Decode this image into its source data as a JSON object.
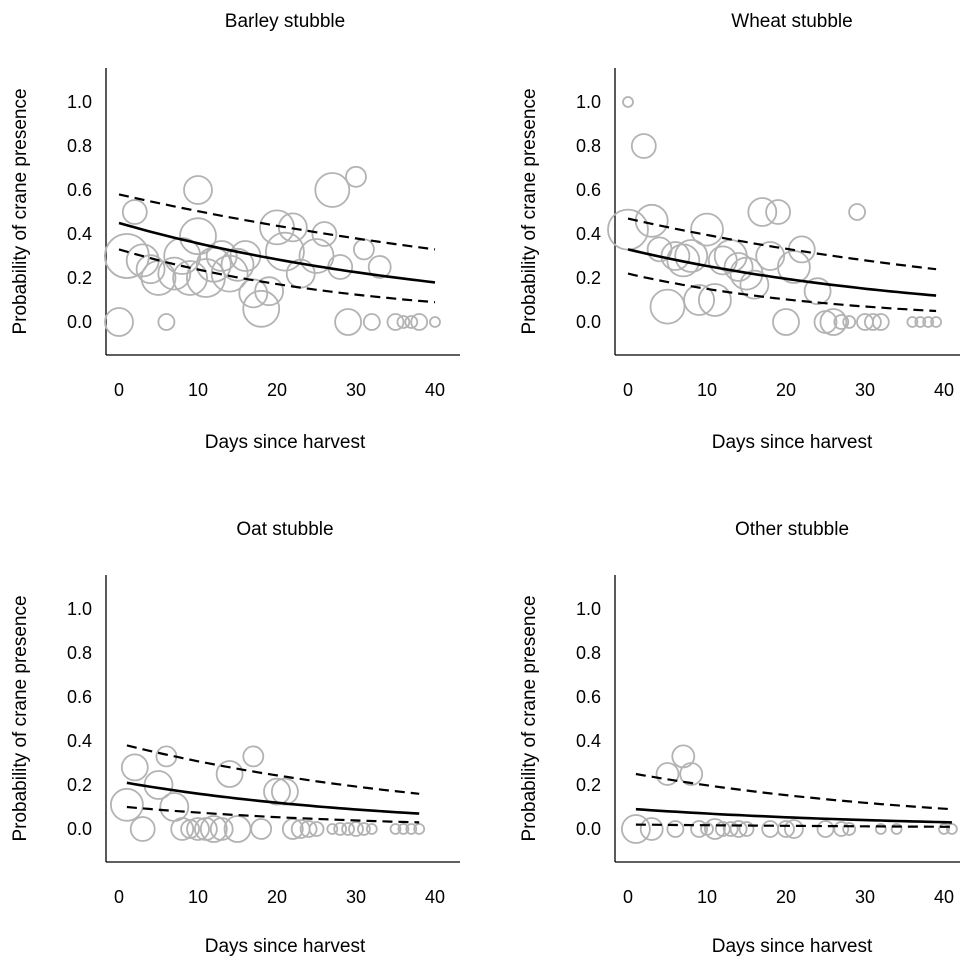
{
  "chart_data": [
    {
      "type": "scatter",
      "title": "Barley stubble",
      "xlabel": "Days since harvest",
      "ylabel": "Probability of crane presence",
      "xlim": [
        -2,
        42
      ],
      "ylim": [
        -0.15,
        1.15
      ],
      "xticks": [
        "0",
        "10",
        "20",
        "30",
        "40"
      ],
      "yticks": [
        "0.0",
        "0.2",
        "0.4",
        "0.6",
        "0.8",
        "1.0"
      ],
      "colors": {
        "points": "#b3b3b3",
        "fit": "#000000",
        "ci": "#000000"
      },
      "points": [
        {
          "x": 0,
          "y": 0.0,
          "r": 14
        },
        {
          "x": 1,
          "y": 0.3,
          "r": 22
        },
        {
          "x": 2,
          "y": 0.5,
          "r": 12
        },
        {
          "x": 3,
          "y": 0.28,
          "r": 16
        },
        {
          "x": 4,
          "y": 0.24,
          "r": 14
        },
        {
          "x": 5,
          "y": 0.2,
          "r": 17
        },
        {
          "x": 6,
          "y": 0.0,
          "r": 8
        },
        {
          "x": 7,
          "y": 0.22,
          "r": 16
        },
        {
          "x": 8,
          "y": 0.3,
          "r": 18
        },
        {
          "x": 9,
          "y": 0.2,
          "r": 17
        },
        {
          "x": 10,
          "y": 0.39,
          "r": 18
        },
        {
          "x": 10,
          "y": 0.6,
          "r": 14
        },
        {
          "x": 11,
          "y": 0.2,
          "r": 19
        },
        {
          "x": 12,
          "y": 0.26,
          "r": 17
        },
        {
          "x": 13,
          "y": 0.3,
          "r": 15
        },
        {
          "x": 14,
          "y": 0.22,
          "r": 18
        },
        {
          "x": 15,
          "y": 0.26,
          "r": 16
        },
        {
          "x": 16,
          "y": 0.3,
          "r": 15
        },
        {
          "x": 17,
          "y": 0.13,
          "r": 14
        },
        {
          "x": 18,
          "y": 0.06,
          "r": 18
        },
        {
          "x": 19,
          "y": 0.14,
          "r": 14
        },
        {
          "x": 20,
          "y": 0.43,
          "r": 17
        },
        {
          "x": 21,
          "y": 0.32,
          "r": 19
        },
        {
          "x": 22,
          "y": 0.43,
          "r": 14
        },
        {
          "x": 23,
          "y": 0.22,
          "r": 14
        },
        {
          "x": 25,
          "y": 0.3,
          "r": 17
        },
        {
          "x": 26,
          "y": 0.4,
          "r": 12
        },
        {
          "x": 27,
          "y": 0.6,
          "r": 17
        },
        {
          "x": 28,
          "y": 0.25,
          "r": 12
        },
        {
          "x": 29,
          "y": 0.0,
          "r": 13
        },
        {
          "x": 30,
          "y": 0.66,
          "r": 10
        },
        {
          "x": 31,
          "y": 0.33,
          "r": 10
        },
        {
          "x": 32,
          "y": 0.0,
          "r": 8
        },
        {
          "x": 33,
          "y": 0.25,
          "r": 11
        },
        {
          "x": 35,
          "y": 0.0,
          "r": 8
        },
        {
          "x": 36,
          "y": 0.0,
          "r": 6
        },
        {
          "x": 37,
          "y": 0.0,
          "r": 6
        },
        {
          "x": 38,
          "y": 0.0,
          "r": 8
        },
        {
          "x": 40,
          "y": 0.0,
          "r": 5
        }
      ],
      "fit": {
        "x0": 0,
        "x1": 40,
        "y0": 0.45,
        "y1": 0.18
      },
      "ci_upper": {
        "x0": 0,
        "x1": 40,
        "y0": 0.58,
        "y1": 0.33
      },
      "ci_lower": {
        "x0": 0,
        "x1": 40,
        "y0": 0.33,
        "y1": 0.09
      }
    },
    {
      "type": "scatter",
      "title": "Wheat stubble",
      "xlabel": "Days since harvest",
      "ylabel": "Probability of crane presence",
      "xlim": [
        -2,
        42
      ],
      "ylim": [
        -0.15,
        1.15
      ],
      "xticks": [
        "0",
        "10",
        "20",
        "30",
        "40"
      ],
      "yticks": [
        "0.0",
        "0.2",
        "0.4",
        "0.6",
        "0.8",
        "1.0"
      ],
      "colors": {
        "points": "#b3b3b3",
        "fit": "#000000",
        "ci": "#000000"
      },
      "points": [
        {
          "x": 0,
          "y": 1.0,
          "r": 5
        },
        {
          "x": 0,
          "y": 0.42,
          "r": 20
        },
        {
          "x": 2,
          "y": 0.8,
          "r": 12
        },
        {
          "x": 3,
          "y": 0.46,
          "r": 16
        },
        {
          "x": 4,
          "y": 0.33,
          "r": 12
        },
        {
          "x": 5,
          "y": 0.07,
          "r": 17
        },
        {
          "x": 6,
          "y": 0.3,
          "r": 14
        },
        {
          "x": 7,
          "y": 0.28,
          "r": 16
        },
        {
          "x": 8,
          "y": 0.3,
          "r": 16
        },
        {
          "x": 9,
          "y": 0.1,
          "r": 15
        },
        {
          "x": 10,
          "y": 0.42,
          "r": 16
        },
        {
          "x": 11,
          "y": 0.1,
          "r": 16
        },
        {
          "x": 12,
          "y": 0.28,
          "r": 14
        },
        {
          "x": 13,
          "y": 0.3,
          "r": 16
        },
        {
          "x": 14,
          "y": 0.25,
          "r": 14
        },
        {
          "x": 15,
          "y": 0.22,
          "r": 16
        },
        {
          "x": 16,
          "y": 0.17,
          "r": 14
        },
        {
          "x": 17,
          "y": 0.5,
          "r": 14
        },
        {
          "x": 18,
          "y": 0.3,
          "r": 14
        },
        {
          "x": 19,
          "y": 0.5,
          "r": 12
        },
        {
          "x": 20,
          "y": 0.0,
          "r": 13
        },
        {
          "x": 21,
          "y": 0.25,
          "r": 16
        },
        {
          "x": 22,
          "y": 0.33,
          "r": 13
        },
        {
          "x": 24,
          "y": 0.14,
          "r": 13
        },
        {
          "x": 25,
          "y": 0.0,
          "r": 11
        },
        {
          "x": 26,
          "y": 0.0,
          "r": 13
        },
        {
          "x": 27,
          "y": 0.0,
          "r": 7
        },
        {
          "x": 28,
          "y": 0.0,
          "r": 6
        },
        {
          "x": 29,
          "y": 0.5,
          "r": 8
        },
        {
          "x": 30,
          "y": 0.0,
          "r": 8
        },
        {
          "x": 31,
          "y": 0.0,
          "r": 8
        },
        {
          "x": 32,
          "y": 0.0,
          "r": 8
        },
        {
          "x": 36,
          "y": 0.0,
          "r": 5
        },
        {
          "x": 37,
          "y": 0.0,
          "r": 5
        },
        {
          "x": 38,
          "y": 0.0,
          "r": 5
        },
        {
          "x": 39,
          "y": 0.0,
          "r": 5
        }
      ],
      "fit": {
        "x0": 0,
        "x1": 39,
        "y0": 0.33,
        "y1": 0.12
      },
      "ci_upper": {
        "x0": 0,
        "x1": 39,
        "y0": 0.47,
        "y1": 0.24
      },
      "ci_lower": {
        "x0": 0,
        "x1": 39,
        "y0": 0.22,
        "y1": 0.05
      }
    },
    {
      "type": "scatter",
      "title": "Oat stubble",
      "xlabel": "Days since harvest",
      "ylabel": "Probability of crane presence",
      "xlim": [
        -2,
        42
      ],
      "ylim": [
        -0.15,
        1.15
      ],
      "xticks": [
        "0",
        "10",
        "20",
        "30",
        "40"
      ],
      "yticks": [
        "0.0",
        "0.2",
        "0.4",
        "0.6",
        "0.8",
        "1.0"
      ],
      "colors": {
        "points": "#b3b3b3",
        "fit": "#000000",
        "ci": "#000000"
      },
      "points": [
        {
          "x": 1,
          "y": 0.11,
          "r": 16
        },
        {
          "x": 2,
          "y": 0.28,
          "r": 13
        },
        {
          "x": 3,
          "y": 0.0,
          "r": 12
        },
        {
          "x": 5,
          "y": 0.2,
          "r": 14
        },
        {
          "x": 6,
          "y": 0.33,
          "r": 10
        },
        {
          "x": 7,
          "y": 0.1,
          "r": 14
        },
        {
          "x": 8,
          "y": 0.0,
          "r": 11
        },
        {
          "x": 9,
          "y": 0.0,
          "r": 9
        },
        {
          "x": 10,
          "y": 0.0,
          "r": 11
        },
        {
          "x": 11,
          "y": 0.0,
          "r": 11
        },
        {
          "x": 12,
          "y": 0.0,
          "r": 13
        },
        {
          "x": 13,
          "y": 0.0,
          "r": 11
        },
        {
          "x": 14,
          "y": 0.25,
          "r": 13
        },
        {
          "x": 15,
          "y": 0.0,
          "r": 13
        },
        {
          "x": 17,
          "y": 0.33,
          "r": 10
        },
        {
          "x": 18,
          "y": 0.0,
          "r": 10
        },
        {
          "x": 20,
          "y": 0.17,
          "r": 13
        },
        {
          "x": 21,
          "y": 0.17,
          "r": 13
        },
        {
          "x": 22,
          "y": 0.0,
          "r": 10
        },
        {
          "x": 23,
          "y": 0.0,
          "r": 9
        },
        {
          "x": 24,
          "y": 0.0,
          "r": 8
        },
        {
          "x": 25,
          "y": 0.0,
          "r": 7
        },
        {
          "x": 27,
          "y": 0.0,
          "r": 5
        },
        {
          "x": 28,
          "y": 0.0,
          "r": 6
        },
        {
          "x": 29,
          "y": 0.0,
          "r": 6
        },
        {
          "x": 30,
          "y": 0.0,
          "r": 7
        },
        {
          "x": 31,
          "y": 0.0,
          "r": 6
        },
        {
          "x": 32,
          "y": 0.0,
          "r": 5
        },
        {
          "x": 35,
          "y": 0.0,
          "r": 5
        },
        {
          "x": 36,
          "y": 0.0,
          "r": 5
        },
        {
          "x": 37,
          "y": 0.0,
          "r": 5
        },
        {
          "x": 38,
          "y": 0.0,
          "r": 5
        }
      ],
      "fit": {
        "x0": 1,
        "x1": 38,
        "y0": 0.21,
        "y1": 0.07
      },
      "ci_upper": {
        "x0": 1,
        "x1": 38,
        "y0": 0.38,
        "y1": 0.16
      },
      "ci_lower": {
        "x0": 1,
        "x1": 38,
        "y0": 0.1,
        "y1": 0.03
      }
    },
    {
      "type": "scatter",
      "title": "Other stubble",
      "xlabel": "Days since harvest",
      "ylabel": "Probability of crane presence",
      "xlim": [
        -2,
        42
      ],
      "ylim": [
        -0.15,
        1.15
      ],
      "xticks": [
        "0",
        "10",
        "20",
        "30",
        "40"
      ],
      "yticks": [
        "0.0",
        "0.2",
        "0.4",
        "0.6",
        "0.8",
        "1.0"
      ],
      "colors": {
        "points": "#b3b3b3",
        "fit": "#000000",
        "ci": "#000000"
      },
      "points": [
        {
          "x": 1,
          "y": 0.0,
          "r": 14
        },
        {
          "x": 3,
          "y": 0.0,
          "r": 11
        },
        {
          "x": 5,
          "y": 0.25,
          "r": 11
        },
        {
          "x": 6,
          "y": 0.0,
          "r": 8
        },
        {
          "x": 7,
          "y": 0.33,
          "r": 11
        },
        {
          "x": 8,
          "y": 0.25,
          "r": 11
        },
        {
          "x": 9,
          "y": 0.0,
          "r": 8
        },
        {
          "x": 10,
          "y": 0.0,
          "r": 6
        },
        {
          "x": 11,
          "y": 0.0,
          "r": 10
        },
        {
          "x": 12,
          "y": 0.0,
          "r": 7
        },
        {
          "x": 13,
          "y": 0.0,
          "r": 7
        },
        {
          "x": 14,
          "y": 0.0,
          "r": 8
        },
        {
          "x": 15,
          "y": 0.0,
          "r": 7
        },
        {
          "x": 18,
          "y": 0.0,
          "r": 8
        },
        {
          "x": 20,
          "y": 0.0,
          "r": 8
        },
        {
          "x": 21,
          "y": 0.0,
          "r": 9
        },
        {
          "x": 25,
          "y": 0.0,
          "r": 8
        },
        {
          "x": 27,
          "y": 0.0,
          "r": 7
        },
        {
          "x": 28,
          "y": 0.0,
          "r": 6
        },
        {
          "x": 32,
          "y": 0.0,
          "r": 5
        },
        {
          "x": 34,
          "y": 0.0,
          "r": 5
        },
        {
          "x": 40,
          "y": 0.0,
          "r": 5
        },
        {
          "x": 41,
          "y": 0.0,
          "r": 5
        }
      ],
      "fit": {
        "x0": 1,
        "x1": 41,
        "y0": 0.09,
        "y1": 0.03
      },
      "ci_upper": {
        "x0": 1,
        "x1": 41,
        "y0": 0.25,
        "y1": 0.09
      },
      "ci_lower": {
        "x0": 1,
        "x1": 41,
        "y0": 0.02,
        "y1": 0.01
      }
    }
  ]
}
